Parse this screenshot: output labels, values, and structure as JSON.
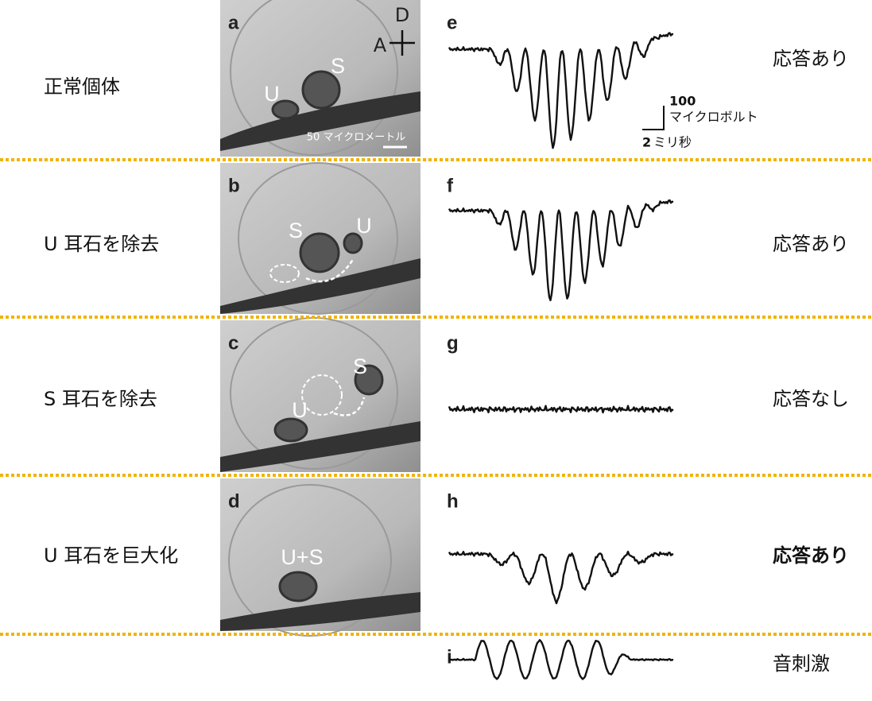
{
  "rows": [
    {
      "condition": "正常個体",
      "image_letter": "a",
      "trace_letter": "e",
      "response": "応答あり",
      "image_labels": [
        "U",
        "S"
      ]
    },
    {
      "condition": "U 耳石を除去",
      "image_letter": "b",
      "trace_letter": "f",
      "response": "応答あり",
      "image_labels": [
        "S",
        "U"
      ]
    },
    {
      "condition": "S 耳石を除去",
      "image_letter": "c",
      "trace_letter": "g",
      "response": "応答なし",
      "image_labels": [
        "S",
        "U"
      ]
    },
    {
      "condition": "U 耳石を巨大化",
      "image_letter": "d",
      "trace_letter": "h",
      "response": "応答あり",
      "image_labels": [
        "U+S"
      ],
      "highlight": true
    }
  ],
  "orientation": {
    "dorsal": "D",
    "anterior": "A"
  },
  "image_scale_bar": "50 マイクロメートル",
  "trace_scale": {
    "amplitude_value": 100,
    "amplitude_unit": "マイクロボルト",
    "time_value": 2,
    "time_unit": "ミリ秒"
  },
  "stimulus": {
    "trace_letter": "i",
    "label": "音刺激"
  }
}
